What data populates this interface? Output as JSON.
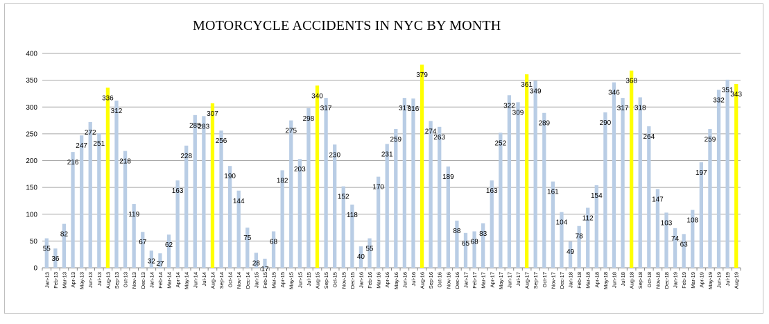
{
  "chart_data": {
    "type": "bar",
    "title": "MOTORCYCLE ACCIDENTS IN NYC BY MONTH",
    "xlabel": "",
    "ylabel": "",
    "ylim": [
      0,
      400
    ],
    "yticks": [
      0,
      50,
      100,
      150,
      200,
      250,
      300,
      350,
      400
    ],
    "grid": true,
    "legend": "none",
    "colors": {
      "default": "#b9cde5",
      "highlight": "#ffff00"
    },
    "categories": [
      "Jan-13",
      "Feb-13",
      "Mar-13",
      "Apr-13",
      "May-13",
      "Jun-13",
      "Jul-13",
      "Aug-13",
      "Sep-13",
      "Oct-13",
      "Nov-13",
      "Dec-13",
      "Jan-14",
      "Feb-14",
      "Mar-14",
      "Apr-14",
      "May-14",
      "Jun-14",
      "Jul-14",
      "Aug-14",
      "Sep-14",
      "Oct-14",
      "Nov-14",
      "Dec-14",
      "Jan-15",
      "Feb-15",
      "Mar-15",
      "Apr-15",
      "May-15",
      "Jun-15",
      "Jul-15",
      "Aug-15",
      "Sep-15",
      "Oct-15",
      "Nov-15",
      "Dec-15",
      "Jan-16",
      "Feb-16",
      "Mar-16",
      "Apr-16",
      "May-16",
      "Jun-16",
      "Jul-16",
      "Aug-16",
      "Sep-16",
      "Oct-16",
      "Nov-16",
      "Dec-16",
      "Jan-17",
      "Feb-17",
      "Mar-17",
      "Apr-17",
      "May-17",
      "Jun-17",
      "Jul-17",
      "Aug-17",
      "Sep-17",
      "Oct-17",
      "Nov-17",
      "Dec-17",
      "Jan-18",
      "Feb-18",
      "Mar-18",
      "Apr-18",
      "May-18",
      "Jun-18",
      "Jul-18",
      "Aug-18",
      "Sep-18",
      "Oct-18",
      "Nov-18",
      "Dec-18",
      "Jan-19",
      "Feb-19",
      "Mar-19",
      "Apr-19",
      "May-19",
      "Jun-19",
      "Jul-19",
      "Aug-19"
    ],
    "values": [
      55,
      36,
      82,
      216,
      247,
      272,
      251,
      336,
      312,
      218,
      119,
      67,
      32,
      27,
      62,
      163,
      228,
      285,
      283,
      307,
      256,
      190,
      144,
      75,
      28,
      17,
      68,
      182,
      275,
      203,
      298,
      340,
      317,
      230,
      152,
      118,
      40,
      55,
      170,
      231,
      259,
      317,
      316,
      379,
      274,
      263,
      189,
      88,
      65,
      68,
      83,
      163,
      252,
      322,
      309,
      361,
      349,
      289,
      161,
      104,
      49,
      78,
      112,
      154,
      290,
      346,
      317,
      368,
      318,
      264,
      147,
      103,
      74,
      63,
      108,
      197,
      259,
      332,
      351,
      343
    ],
    "data_labels": [
      "55",
      "36",
      "82",
      "216",
      "247",
      "272",
      "251",
      "336",
      "312",
      "218",
      "119",
      "67",
      "32",
      "27",
      "62",
      "163",
      "228",
      "285",
      "283",
      "307",
      "256",
      "190",
      "144",
      "75",
      "28",
      "17",
      "68",
      "182",
      "275",
      "203",
      "298",
      "340",
      "317",
      "230",
      "152",
      "118",
      "40",
      "55",
      "170",
      "231",
      "259",
      "317",
      "316",
      "379",
      "274",
      "263",
      "189",
      "88",
      "65",
      "68",
      "83",
      "163",
      "252",
      "322",
      "309",
      "361",
      "349",
      "289",
      "161",
      "104",
      "49",
      "78",
      "112",
      "154",
      "290",
      "346",
      "317",
      "368",
      "318",
      "264",
      "147",
      "103",
      "74",
      "63",
      "108",
      "197",
      "259",
      "332",
      "351",
      "343"
    ],
    "highlighted": [
      "Aug-13",
      "Aug-14",
      "Aug-15",
      "Aug-16",
      "Aug-17",
      "Aug-18",
      "Aug-19"
    ],
    "category_labels": [
      "Jan-13",
      "Feb-13",
      "Mar-13",
      "Apr-13",
      "May-13",
      "Jun-13",
      "Jul-13",
      "Aug-13",
      "Sep-13",
      "Oct-13",
      "Nov-13",
      "Dec-13",
      "Jan-14",
      "Feb-14",
      "Mar-14",
      "Apr-14",
      "May-14",
      "Jun-14",
      "Jul-14",
      "Aug-14",
      "Sep-14",
      "Oct-14",
      "Nov-14",
      "Dec-14",
      "Jan-15",
      "Feb-15",
      "Mar-15",
      "Apr-15",
      "May-15",
      "Jun-15",
      "Jul-15",
      "Aug-15",
      "Sep-15",
      "Oct-15",
      "Nov-15",
      "Dec-15",
      "Jan-16",
      "Feb-16",
      "Mar-16",
      "Apr-16",
      "May-16",
      "Jun-16",
      "Jul-16",
      "Aug-16",
      "Sep-16",
      "Oct-16",
      "Nov-16",
      "Dec-16",
      "Jan-17",
      "Feb-17",
      "Mar-17",
      "Apr-17",
      "May-17",
      "Jun-17",
      "Jul-17",
      "Aug-17",
      "Sep-17",
      "Oct-17",
      "Nov-17",
      "Dec-17",
      "Jan-18",
      "Feb-18",
      "Mar-18",
      "Apr-18",
      "May-18",
      "Jun-18",
      "Jul-18",
      "Aug-18",
      "Sep-18",
      "Oct-18",
      "Nov-18",
      "Dec-18",
      "Jan-19",
      "Feb-19",
      "Mar-19",
      "Apr-19",
      "May-19",
      "Jun-19",
      "Jul-19",
      "Aug-19"
    ]
  }
}
